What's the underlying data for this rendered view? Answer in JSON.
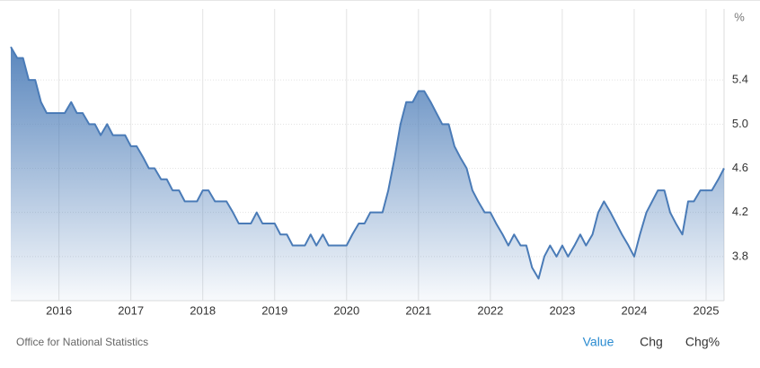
{
  "chart_data": {
    "type": "area",
    "y_label": "%",
    "color": "#4a7bb7",
    "x": [
      2015.33,
      2015.42,
      2015.5,
      2015.58,
      2015.67,
      2015.75,
      2015.83,
      2015.92,
      2016,
      2016.08,
      2016.17,
      2016.25,
      2016.33,
      2016.42,
      2016.5,
      2016.58,
      2016.67,
      2016.75,
      2016.83,
      2016.92,
      2017,
      2017.08,
      2017.17,
      2017.25,
      2017.33,
      2017.42,
      2017.5,
      2017.58,
      2017.67,
      2017.75,
      2017.83,
      2017.92,
      2018,
      2018.08,
      2018.17,
      2018.25,
      2018.33,
      2018.42,
      2018.5,
      2018.58,
      2018.67,
      2018.75,
      2018.83,
      2018.92,
      2019,
      2019.08,
      2019.17,
      2019.25,
      2019.33,
      2019.42,
      2019.5,
      2019.58,
      2019.67,
      2019.75,
      2019.83,
      2019.92,
      2020,
      2020.08,
      2020.17,
      2020.25,
      2020.33,
      2020.42,
      2020.5,
      2020.58,
      2020.67,
      2020.75,
      2020.83,
      2020.92,
      2021,
      2021.08,
      2021.17,
      2021.25,
      2021.33,
      2021.42,
      2021.5,
      2021.58,
      2021.67,
      2021.75,
      2021.83,
      2021.92,
      2022,
      2022.08,
      2022.17,
      2022.25,
      2022.33,
      2022.42,
      2022.5,
      2022.58,
      2022.67,
      2022.75,
      2022.83,
      2022.92,
      2023,
      2023.08,
      2023.17,
      2023.25,
      2023.33,
      2023.42,
      2023.5,
      2023.58,
      2023.67,
      2023.75,
      2023.83,
      2023.92,
      2024,
      2024.08,
      2024.17,
      2024.25,
      2024.33,
      2024.42,
      2024.5,
      2024.58,
      2024.67,
      2024.75,
      2024.83,
      2024.92,
      2025,
      2025.08,
      2025.17,
      2025.25
    ],
    "values": [
      5.7,
      5.6,
      5.6,
      5.4,
      5.4,
      5.2,
      5.1,
      5.1,
      5.1,
      5.1,
      5.2,
      5.1,
      5.1,
      5.0,
      5.0,
      4.9,
      5.0,
      4.9,
      4.9,
      4.9,
      4.8,
      4.8,
      4.7,
      4.6,
      4.6,
      4.5,
      4.5,
      4.4,
      4.4,
      4.3,
      4.3,
      4.3,
      4.4,
      4.4,
      4.3,
      4.3,
      4.3,
      4.2,
      4.1,
      4.1,
      4.1,
      4.2,
      4.1,
      4.1,
      4.1,
      4.0,
      4.0,
      3.9,
      3.9,
      3.9,
      4.0,
      3.9,
      4.0,
      3.9,
      3.9,
      3.9,
      3.9,
      4.0,
      4.1,
      4.1,
      4.2,
      4.2,
      4.2,
      4.4,
      4.7,
      5.0,
      5.2,
      5.2,
      5.3,
      5.3,
      5.2,
      5.1,
      5.0,
      5.0,
      4.8,
      4.7,
      4.6,
      4.4,
      4.3,
      4.2,
      4.2,
      4.1,
      4.0,
      3.9,
      4.0,
      3.9,
      3.9,
      3.7,
      3.6,
      3.8,
      3.9,
      3.8,
      3.9,
      3.8,
      3.9,
      4.0,
      3.9,
      4.0,
      4.2,
      4.3,
      4.2,
      4.1,
      4.0,
      3.9,
      3.8,
      4.0,
      4.2,
      4.3,
      4.4,
      4.4,
      4.2,
      4.1,
      4.0,
      4.3,
      4.3,
      4.4,
      4.4,
      4.4,
      4.5,
      4.6
    ],
    "xlim": [
      2015.33,
      2025.25
    ],
    "xticks": [
      2016,
      2017,
      2018,
      2019,
      2020,
      2021,
      2022,
      2023,
      2024,
      2025
    ],
    "ylim": [
      3.4,
      5.8
    ],
    "yticks": [
      3.8,
      4.2,
      4.6,
      {
        "value": 5,
        "label": "5.0"
      },
      5.4
    ],
    "grid": true
  },
  "footer": {
    "source": "Office for National Statistics",
    "buttons": [
      "Value",
      "Chg",
      "Chg%"
    ]
  }
}
